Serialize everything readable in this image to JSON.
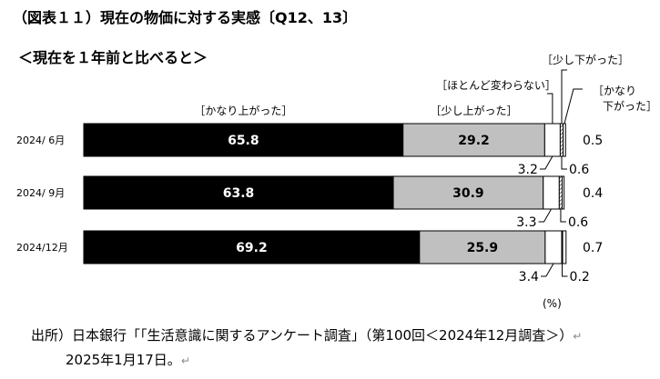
{
  "title": "（図表１１）現在の物価に対する実感〔Q12、13〕",
  "subtitle": "＜現在を１年前と比べると＞",
  "source": {
    "line1": "出所）日本銀行「「生活意識に関するアンケート調査」（第100回＜2024年12月調査＞）",
    "line2": "2025年1月17日。"
  },
  "colors": {
    "bar_black": "#000000",
    "bar_gray": "#c0c0c0",
    "bar_white": "#ffffff",
    "bar_hatch": "#555555"
  },
  "chart_data": {
    "type": "bar",
    "orientation": "horizontal",
    "stacked": true,
    "unit_label": "(%)",
    "xlim": [
      0,
      100
    ],
    "categories": [
      "2024/ 6月",
      "2024/ 9月",
      "2024/12月"
    ],
    "series": [
      {
        "name": "［かなり上がった］",
        "values": [
          65.8,
          63.8,
          69.2
        ]
      },
      {
        "name": "［少し上がった］",
        "values": [
          29.2,
          30.9,
          25.9
        ]
      },
      {
        "name": "［ほとんど変わらない］",
        "values": [
          3.2,
          3.3,
          3.4
        ]
      },
      {
        "name": "［少し下がった］",
        "values": [
          0.6,
          0.6,
          0.2
        ]
      },
      {
        "name": "［かなり下がった］",
        "values": [
          0.5,
          0.4,
          0.7
        ]
      }
    ],
    "labels": [
      [
        "65.8",
        "29.2",
        "3.2",
        "0.6",
        "0.5"
      ],
      [
        "63.8",
        "30.9",
        "3.3",
        "0.6",
        "0.4"
      ],
      [
        "69.2",
        "25.9",
        "3.4",
        "0.2",
        "0.7"
      ]
    ],
    "legend_label_2_line2": "下がった"
  }
}
